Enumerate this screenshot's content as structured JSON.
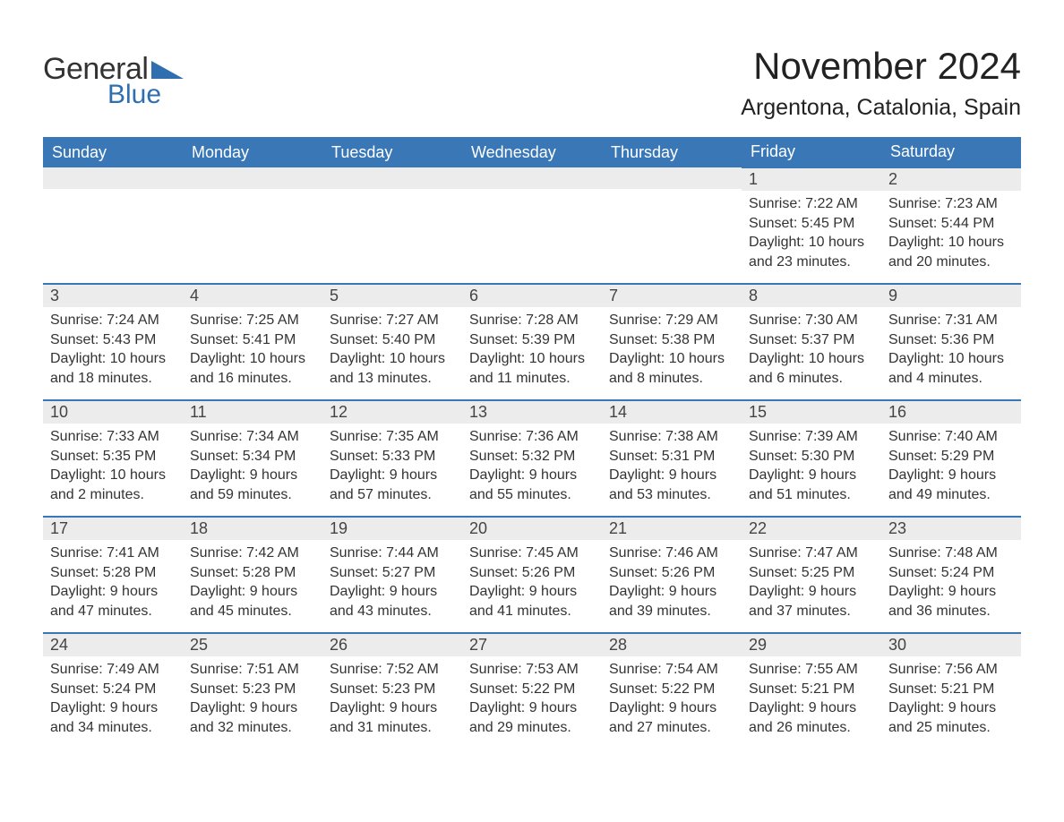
{
  "logo": {
    "text1": "General",
    "text2": "Blue",
    "tri_color": "#2f6fb0"
  },
  "title": "November 2024",
  "location": "Argentona, Catalonia, Spain",
  "colors": {
    "header_bg": "#3a77b7",
    "header_text": "#ffffff",
    "daynum_bg": "#ececec",
    "border": "#3a77b7",
    "body_text": "#333333"
  },
  "day_headers": [
    "Sunday",
    "Monday",
    "Tuesday",
    "Wednesday",
    "Thursday",
    "Friday",
    "Saturday"
  ],
  "weeks": [
    [
      null,
      null,
      null,
      null,
      null,
      {
        "n": "1",
        "sunrise": "7:22 AM",
        "sunset": "5:45 PM",
        "daylight": "10 hours and 23 minutes."
      },
      {
        "n": "2",
        "sunrise": "7:23 AM",
        "sunset": "5:44 PM",
        "daylight": "10 hours and 20 minutes."
      }
    ],
    [
      {
        "n": "3",
        "sunrise": "7:24 AM",
        "sunset": "5:43 PM",
        "daylight": "10 hours and 18 minutes."
      },
      {
        "n": "4",
        "sunrise": "7:25 AM",
        "sunset": "5:41 PM",
        "daylight": "10 hours and 16 minutes."
      },
      {
        "n": "5",
        "sunrise": "7:27 AM",
        "sunset": "5:40 PM",
        "daylight": "10 hours and 13 minutes."
      },
      {
        "n": "6",
        "sunrise": "7:28 AM",
        "sunset": "5:39 PM",
        "daylight": "10 hours and 11 minutes."
      },
      {
        "n": "7",
        "sunrise": "7:29 AM",
        "sunset": "5:38 PM",
        "daylight": "10 hours and 8 minutes."
      },
      {
        "n": "8",
        "sunrise": "7:30 AM",
        "sunset": "5:37 PM",
        "daylight": "10 hours and 6 minutes."
      },
      {
        "n": "9",
        "sunrise": "7:31 AM",
        "sunset": "5:36 PM",
        "daylight": "10 hours and 4 minutes."
      }
    ],
    [
      {
        "n": "10",
        "sunrise": "7:33 AM",
        "sunset": "5:35 PM",
        "daylight": "10 hours and 2 minutes."
      },
      {
        "n": "11",
        "sunrise": "7:34 AM",
        "sunset": "5:34 PM",
        "daylight": "9 hours and 59 minutes."
      },
      {
        "n": "12",
        "sunrise": "7:35 AM",
        "sunset": "5:33 PM",
        "daylight": "9 hours and 57 minutes."
      },
      {
        "n": "13",
        "sunrise": "7:36 AM",
        "sunset": "5:32 PM",
        "daylight": "9 hours and 55 minutes."
      },
      {
        "n": "14",
        "sunrise": "7:38 AM",
        "sunset": "5:31 PM",
        "daylight": "9 hours and 53 minutes."
      },
      {
        "n": "15",
        "sunrise": "7:39 AM",
        "sunset": "5:30 PM",
        "daylight": "9 hours and 51 minutes."
      },
      {
        "n": "16",
        "sunrise": "7:40 AM",
        "sunset": "5:29 PM",
        "daylight": "9 hours and 49 minutes."
      }
    ],
    [
      {
        "n": "17",
        "sunrise": "7:41 AM",
        "sunset": "5:28 PM",
        "daylight": "9 hours and 47 minutes."
      },
      {
        "n": "18",
        "sunrise": "7:42 AM",
        "sunset": "5:28 PM",
        "daylight": "9 hours and 45 minutes."
      },
      {
        "n": "19",
        "sunrise": "7:44 AM",
        "sunset": "5:27 PM",
        "daylight": "9 hours and 43 minutes."
      },
      {
        "n": "20",
        "sunrise": "7:45 AM",
        "sunset": "5:26 PM",
        "daylight": "9 hours and 41 minutes."
      },
      {
        "n": "21",
        "sunrise": "7:46 AM",
        "sunset": "5:26 PM",
        "daylight": "9 hours and 39 minutes."
      },
      {
        "n": "22",
        "sunrise": "7:47 AM",
        "sunset": "5:25 PM",
        "daylight": "9 hours and 37 minutes."
      },
      {
        "n": "23",
        "sunrise": "7:48 AM",
        "sunset": "5:24 PM",
        "daylight": "9 hours and 36 minutes."
      }
    ],
    [
      {
        "n": "24",
        "sunrise": "7:49 AM",
        "sunset": "5:24 PM",
        "daylight": "9 hours and 34 minutes."
      },
      {
        "n": "25",
        "sunrise": "7:51 AM",
        "sunset": "5:23 PM",
        "daylight": "9 hours and 32 minutes."
      },
      {
        "n": "26",
        "sunrise": "7:52 AM",
        "sunset": "5:23 PM",
        "daylight": "9 hours and 31 minutes."
      },
      {
        "n": "27",
        "sunrise": "7:53 AM",
        "sunset": "5:22 PM",
        "daylight": "9 hours and 29 minutes."
      },
      {
        "n": "28",
        "sunrise": "7:54 AM",
        "sunset": "5:22 PM",
        "daylight": "9 hours and 27 minutes."
      },
      {
        "n": "29",
        "sunrise": "7:55 AM",
        "sunset": "5:21 PM",
        "daylight": "9 hours and 26 minutes."
      },
      {
        "n": "30",
        "sunrise": "7:56 AM",
        "sunset": "5:21 PM",
        "daylight": "9 hours and 25 minutes."
      }
    ]
  ],
  "labels": {
    "sunrise": "Sunrise: ",
    "sunset": "Sunset: ",
    "daylight": "Daylight: "
  }
}
